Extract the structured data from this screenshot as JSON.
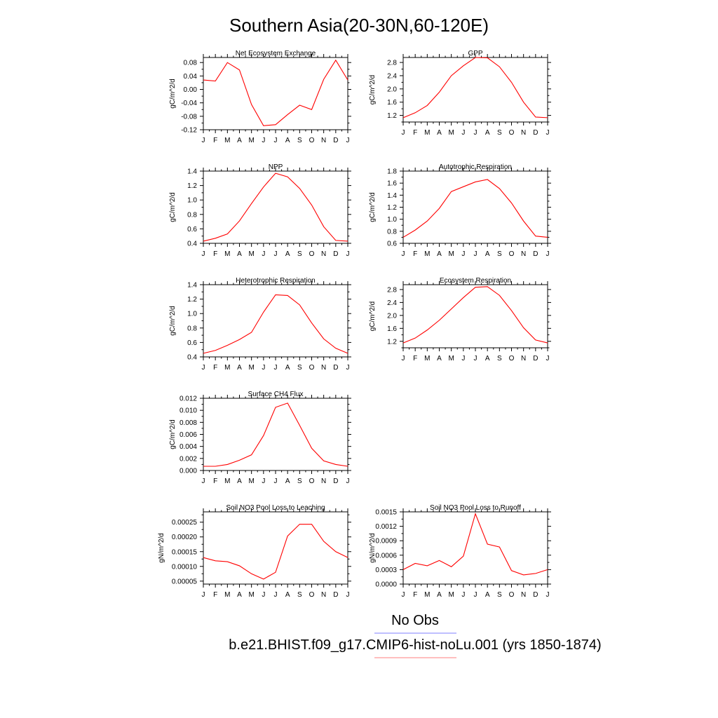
{
  "figure": {
    "title": "Southern Asia(20-30N,60-120E)",
    "legend": [
      {
        "label": "No Obs",
        "color": "#7f7fff"
      },
      {
        "label": "b.e21.BHIST.f09_g17.CMIP6-hist-noLu.001 (yrs 1850-1874)",
        "color": "#ff7f7f"
      }
    ],
    "series_color": "#ff0000"
  },
  "chart_data": [
    {
      "type": "line",
      "title": "Net Ecosystem Exchange",
      "ylabel": "gC/m^2/d",
      "xlabel": "",
      "x": [
        "J",
        "F",
        "M",
        "A",
        "M",
        "J",
        "J",
        "A",
        "S",
        "O",
        "N",
        "D",
        "J"
      ],
      "ylim": [
        -0.12,
        0.095
      ],
      "yticks": [
        -0.12,
        -0.08,
        -0.04,
        0.0,
        0.04,
        0.08
      ],
      "ytick_labels": [
        "-0.12",
        "-0.08",
        "-0.04",
        "0.00",
        "0.04",
        "0.08"
      ],
      "series": [
        {
          "values": [
            0.028,
            0.025,
            0.08,
            0.058,
            -0.045,
            -0.108,
            -0.105,
            -0.075,
            -0.047,
            -0.06,
            0.03,
            0.087,
            0.028
          ]
        }
      ]
    },
    {
      "type": "line",
      "title": "GPP",
      "ylabel": "gC/m^2/d",
      "xlabel": "",
      "x": [
        "J",
        "F",
        "M",
        "A",
        "M",
        "J",
        "J",
        "A",
        "S",
        "O",
        "N",
        "D",
        "J"
      ],
      "ylim": [
        1.0,
        2.95
      ],
      "yticks": [
        1.2,
        1.6,
        2.0,
        2.4,
        2.8
      ],
      "ytick_labels": [
        "1.2",
        "1.6",
        "2.0",
        "2.4",
        "2.8"
      ],
      "series": [
        {
          "values": [
            1.13,
            1.28,
            1.5,
            1.9,
            2.4,
            2.7,
            2.95,
            2.94,
            2.67,
            2.2,
            1.6,
            1.15,
            1.13
          ]
        }
      ]
    },
    {
      "type": "line",
      "title": "NPP",
      "ylabel": "gC/m^2/d",
      "xlabel": "",
      "x": [
        "J",
        "F",
        "M",
        "A",
        "M",
        "J",
        "J",
        "A",
        "S",
        "O",
        "N",
        "D",
        "J"
      ],
      "ylim": [
        0.4,
        1.4
      ],
      "yticks": [
        0.4,
        0.6,
        0.8,
        1.0,
        1.2,
        1.4
      ],
      "ytick_labels": [
        "0.4",
        "0.6",
        "0.8",
        "1.0",
        "1.2",
        "1.4"
      ],
      "series": [
        {
          "values": [
            0.43,
            0.47,
            0.53,
            0.71,
            0.95,
            1.18,
            1.37,
            1.32,
            1.16,
            0.93,
            0.63,
            0.44,
            0.43
          ]
        }
      ]
    },
    {
      "type": "line",
      "title": "Autotrophic Respiration",
      "ylabel": "gC/m^2/d",
      "xlabel": "",
      "x": [
        "J",
        "F",
        "M",
        "A",
        "M",
        "J",
        "J",
        "A",
        "S",
        "O",
        "N",
        "D",
        "J"
      ],
      "ylim": [
        0.6,
        1.8
      ],
      "yticks": [
        0.6,
        0.8,
        1.0,
        1.2,
        1.4,
        1.6,
        1.8
      ],
      "ytick_labels": [
        "0.6",
        "0.8",
        "1.0",
        "1.2",
        "1.4",
        "1.6",
        "1.8"
      ],
      "series": [
        {
          "values": [
            0.7,
            0.82,
            0.97,
            1.18,
            1.46,
            1.54,
            1.62,
            1.66,
            1.51,
            1.27,
            0.97,
            0.72,
            0.7
          ]
        }
      ]
    },
    {
      "type": "line",
      "title": "Heterotrophic Respiration",
      "ylabel": "gC/m^2/d",
      "xlabel": "",
      "x": [
        "J",
        "F",
        "M",
        "A",
        "M",
        "J",
        "J",
        "A",
        "S",
        "O",
        "N",
        "D",
        "J"
      ],
      "ylim": [
        0.4,
        1.4
      ],
      "yticks": [
        0.4,
        0.6,
        0.8,
        1.0,
        1.2,
        1.4
      ],
      "ytick_labels": [
        "0.4",
        "0.6",
        "0.8",
        "1.0",
        "1.2",
        "1.4"
      ],
      "series": [
        {
          "values": [
            0.45,
            0.49,
            0.56,
            0.64,
            0.74,
            1.02,
            1.26,
            1.25,
            1.12,
            0.87,
            0.65,
            0.52,
            0.45
          ]
        }
      ]
    },
    {
      "type": "line",
      "title": "Ecosystem Respiration",
      "ylabel": "gC/m^2/d",
      "xlabel": "",
      "x": [
        "J",
        "F",
        "M",
        "A",
        "M",
        "J",
        "J",
        "A",
        "S",
        "O",
        "N",
        "D",
        "J"
      ],
      "ylim": [
        1.0,
        2.95
      ],
      "yticks": [
        1.2,
        1.6,
        2.0,
        2.4,
        2.8
      ],
      "ytick_labels": [
        "1.2",
        "1.6",
        "2.0",
        "2.4",
        "2.8"
      ],
      "series": [
        {
          "values": [
            1.15,
            1.3,
            1.55,
            1.85,
            2.2,
            2.55,
            2.87,
            2.89,
            2.62,
            2.15,
            1.62,
            1.24,
            1.15
          ]
        }
      ]
    },
    {
      "type": "line",
      "title": "Surface CH4 Flux",
      "ylabel": "gC/m^2/d",
      "xlabel": "",
      "x": [
        "J",
        "F",
        "M",
        "A",
        "M",
        "J",
        "J",
        "A",
        "S",
        "O",
        "N",
        "D",
        "J"
      ],
      "ylim": [
        0.0,
        0.012
      ],
      "yticks": [
        0.0,
        0.002,
        0.004,
        0.006,
        0.008,
        0.01,
        0.012
      ],
      "ytick_labels": [
        "0.000",
        "0.002",
        "0.004",
        "0.006",
        "0.008",
        "0.010",
        "0.012"
      ],
      "series": [
        {
          "values": [
            0.0007,
            0.0007,
            0.001,
            0.0017,
            0.0026,
            0.0058,
            0.0105,
            0.0112,
            0.0075,
            0.0037,
            0.0016,
            0.001,
            0.0007
          ]
        }
      ]
    },
    {
      "type": "line",
      "title": "Soil NO3 Pool Loss to Leaching",
      "ylabel": "gN/m^2/d",
      "xlabel": "",
      "x": [
        "J",
        "F",
        "M",
        "A",
        "M",
        "J",
        "J",
        "A",
        "S",
        "O",
        "N",
        "D",
        "J"
      ],
      "ylim": [
        4e-05,
        0.000285
      ],
      "yticks": [
        5e-05,
        0.0001,
        0.00015,
        0.0002,
        0.00025
      ],
      "ytick_labels": [
        "0.00005",
        "0.00010",
        "0.00015",
        "0.00020",
        "0.00025"
      ],
      "series": [
        {
          "values": [
            0.00013,
            0.000119,
            0.000116,
            0.000102,
            7.5e-05,
            5.7e-05,
            8e-05,
            0.000203,
            0.000243,
            0.000243,
            0.000185,
            0.00015,
            0.00013
          ]
        }
      ]
    },
    {
      "type": "line",
      "title": "Soil NO3 Pool Loss to Runoff",
      "ylabel": "gN/m^2/d",
      "xlabel": "",
      "x": [
        "J",
        "F",
        "M",
        "A",
        "M",
        "J",
        "J",
        "A",
        "S",
        "O",
        "N",
        "D",
        "J"
      ],
      "ylim": [
        0.0,
        0.0015
      ],
      "yticks": [
        0.0,
        0.0003,
        0.0006,
        0.0009,
        0.0012,
        0.0015
      ],
      "ytick_labels": [
        "0.0000",
        "0.0003",
        "0.0006",
        "0.0009",
        "0.0012",
        "0.0015"
      ],
      "series": [
        {
          "values": [
            0.0003,
            0.00043,
            0.00038,
            0.00049,
            0.00036,
            0.00058,
            0.00146,
            0.00083,
            0.00077,
            0.00028,
            0.00019,
            0.00022,
            0.0003
          ]
        }
      ]
    }
  ]
}
